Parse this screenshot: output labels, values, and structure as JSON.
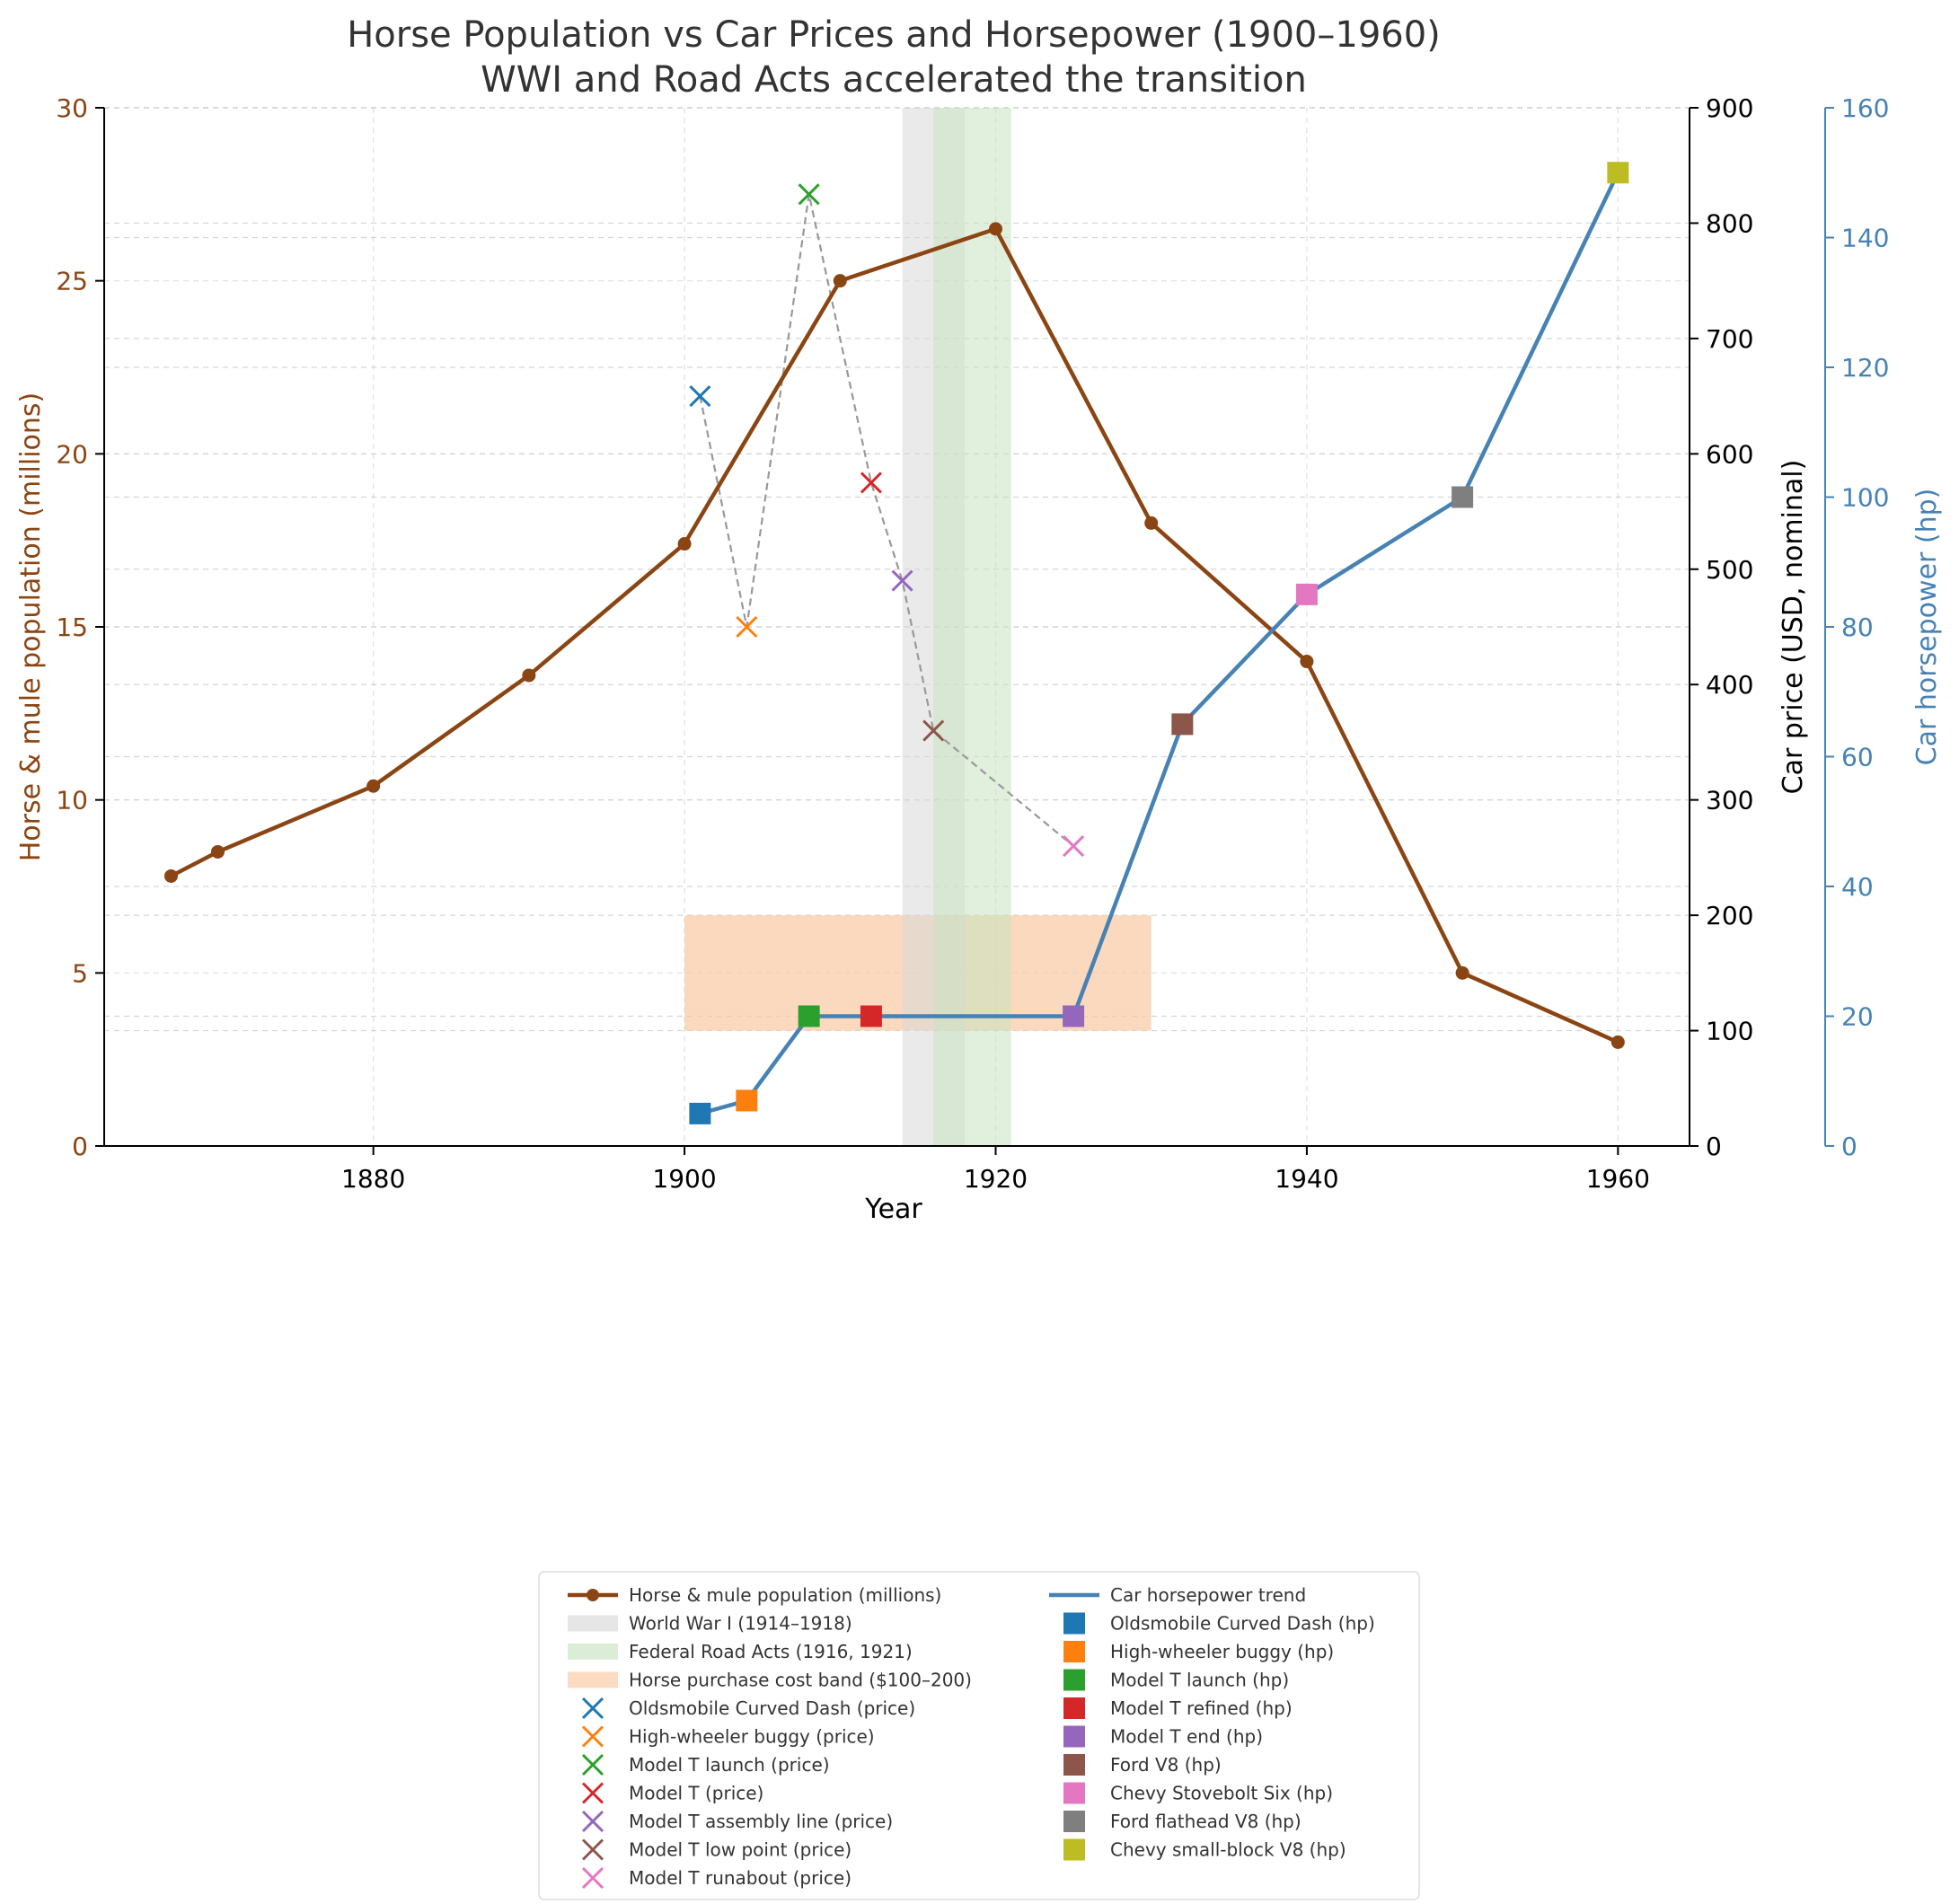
{
  "chart_data": {
    "type": "line",
    "title": "Horse Population vs Car Prices and Horsepower (1900–1960)",
    "subtitle": "WWI and Road Acts accelerated the transition",
    "xlabel": "Year",
    "ylabel": "Horse & mule population (millions)",
    "ylabel_price": "Car price (USD, nominal)",
    "ylabel_hp": "Car horsepower (hp)",
    "xlim": [
      1862.7,
      1964.6
    ],
    "ylim": [
      0,
      30
    ],
    "ylim_price": [
      0,
      900
    ],
    "ylim_hp": [
      0,
      160
    ],
    "x_ticks": [
      1880,
      1900,
      1920,
      1940,
      1960
    ],
    "y_ticks": [
      0,
      5,
      10,
      15,
      20,
      25,
      30
    ],
    "price_ticks": [
      0,
      100,
      200,
      300,
      400,
      500,
      600,
      700,
      800,
      900
    ],
    "hp_ticks": [
      0,
      20,
      40,
      60,
      80,
      100,
      120,
      140,
      160
    ],
    "grid": true,
    "legend_position": "below-center",
    "colors": {
      "horse": "#8B4513",
      "price_line": "#999999",
      "hp_line": "#4682B4",
      "wwi": "#d9d9d9",
      "road": "#c7e3c0",
      "cost_band": "#f9c9a3",
      "grid": "#cccccc",
      "axis": "#000000",
      "title": "#333333",
      "hp_axis": "#4682B4"
    },
    "horse_series": {
      "name": "Horse & mule population (millions)",
      "x": [
        1867,
        1870,
        1880,
        1890,
        1900,
        1910,
        1920,
        1930,
        1940,
        1950,
        1960
      ],
      "y": [
        7.8,
        8.5,
        10.4,
        13.6,
        17.4,
        25.0,
        26.5,
        18.0,
        14.0,
        5.0,
        3.0
      ]
    },
    "bands": [
      {
        "name": "World War I (1914–1918)",
        "x0": 1914,
        "x1": 1918,
        "color": "#d9d9d9"
      },
      {
        "name": "Federal Road Acts (1916, 1921)",
        "x0": 1916,
        "x1": 1921,
        "color": "#c7e3c0"
      }
    ],
    "cost_band": {
      "name": "Horse purchase cost band ($100–200)",
      "x0": 1900,
      "x1": 1930,
      "y0": 100,
      "y1": 200
    },
    "price_points": [
      {
        "name": "Oldsmobile Curved Dash (price)",
        "x": 1901,
        "y": 650,
        "color": "#1f77b4"
      },
      {
        "name": "High-wheeler buggy (price)",
        "x": 1904,
        "y": 450,
        "color": "#ff7f0e"
      },
      {
        "name": "Model T launch (price)",
        "x": 1908,
        "y": 825,
        "color": "#2ca02c"
      },
      {
        "name": "Model T (price)",
        "x": 1912,
        "y": 575,
        "color": "#d62728"
      },
      {
        "name": "Model T assembly line (price)",
        "x": 1914,
        "y": 490,
        "color": "#9467bd"
      },
      {
        "name": "Model T low point (price)",
        "x": 1916,
        "y": 360,
        "color": "#8c564b"
      },
      {
        "name": "Model T runabout (price)",
        "x": 1925,
        "y": 260,
        "color": "#e377c2"
      }
    ],
    "hp_series_name": "Car horsepower trend",
    "hp_points": [
      {
        "name": "Oldsmobile Curved Dash (hp)",
        "x": 1901,
        "y": 5,
        "color": "#1f77b4"
      },
      {
        "name": "High-wheeler buggy (hp)",
        "x": 1904,
        "y": 7,
        "color": "#ff7f0e"
      },
      {
        "name": "Model T launch (hp)",
        "x": 1908,
        "y": 20,
        "color": "#2ca02c"
      },
      {
        "name": "Model T refined (hp)",
        "x": 1912,
        "y": 20,
        "color": "#d62728"
      },
      {
        "name": "Model T end (hp)",
        "x": 1925,
        "y": 20,
        "color": "#9467bd"
      },
      {
        "name": "Ford V8 (hp)",
        "x": 1932,
        "y": 65,
        "color": "#8c564b"
      },
      {
        "name": "Chevy Stovebolt Six (hp)",
        "x": 1940,
        "y": 85,
        "color": "#e377c2"
      },
      {
        "name": "Ford flathead V8 (hp)",
        "x": 1950,
        "y": 100,
        "color": "#7f7f7f"
      },
      {
        "name": "Chevy small-block V8 (hp)",
        "x": 1960,
        "y": 150,
        "color": "#bcbd22"
      }
    ]
  }
}
